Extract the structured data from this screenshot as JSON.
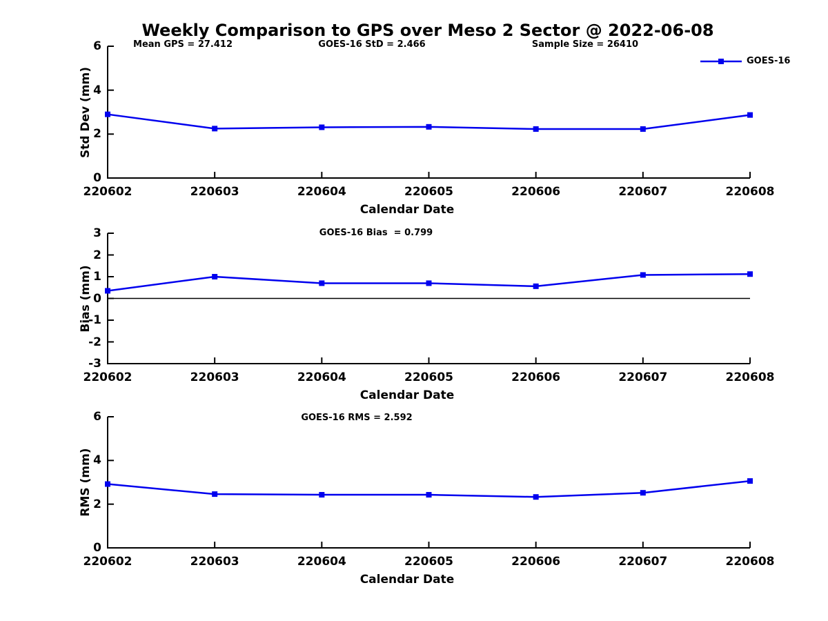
{
  "title": "Weekly Comparison to GPS over Meso 2 Sector @ 2022-06-08",
  "legend": {
    "label": "GOES-16",
    "color": "#0000EE"
  },
  "colors": {
    "series": "#0000EE",
    "axis": "#000000"
  },
  "categories": [
    "220602",
    "220603",
    "220604",
    "220605",
    "220606",
    "220607",
    "220608"
  ],
  "chart_data": [
    {
      "type": "line",
      "name": "std-dev-plot",
      "xlabel": "Calendar Date",
      "ylabel": "Std Dev (mm)",
      "ylim": [
        0,
        6
      ],
      "yticks": [
        0,
        2,
        4,
        6
      ],
      "categories": [
        "220602",
        "220603",
        "220604",
        "220605",
        "220606",
        "220607",
        "220608"
      ],
      "zero_line": false,
      "annotations": [
        "Mean GPS = 27.412",
        "GOES-16 StD = 2.466",
        "Sample Size = 26410"
      ],
      "series": [
        {
          "name": "GOES-16",
          "color": "#0000EE",
          "values": [
            2.9,
            2.25,
            2.31,
            2.33,
            2.23,
            2.23,
            2.87
          ]
        }
      ]
    },
    {
      "type": "line",
      "name": "bias-plot",
      "xlabel": "Calendar Date",
      "ylabel": "Bias (mm)",
      "ylim": [
        -3,
        3
      ],
      "yticks": [
        -3,
        -2,
        -1,
        0,
        1,
        2,
        3
      ],
      "categories": [
        "220602",
        "220603",
        "220604",
        "220605",
        "220606",
        "220607",
        "220608"
      ],
      "zero_line": true,
      "annotations": [
        "GOES-16 Bias  = 0.799"
      ],
      "series": [
        {
          "name": "GOES-16",
          "color": "#0000EE",
          "values": [
            0.35,
            1.0,
            0.7,
            0.7,
            0.56,
            1.08,
            1.12
          ]
        }
      ]
    },
    {
      "type": "line",
      "name": "rms-plot",
      "xlabel": "Calendar Date",
      "ylabel": "RMS (mm)",
      "ylim": [
        0,
        6
      ],
      "yticks": [
        0,
        2,
        4,
        6
      ],
      "categories": [
        "220602",
        "220603",
        "220604",
        "220605",
        "220606",
        "220607",
        "220608"
      ],
      "zero_line": false,
      "annotations": [
        "GOES-16 RMS = 2.592"
      ],
      "series": [
        {
          "name": "GOES-16",
          "color": "#0000EE",
          "values": [
            2.92,
            2.46,
            2.43,
            2.43,
            2.33,
            2.52,
            3.06
          ]
        }
      ]
    }
  ]
}
